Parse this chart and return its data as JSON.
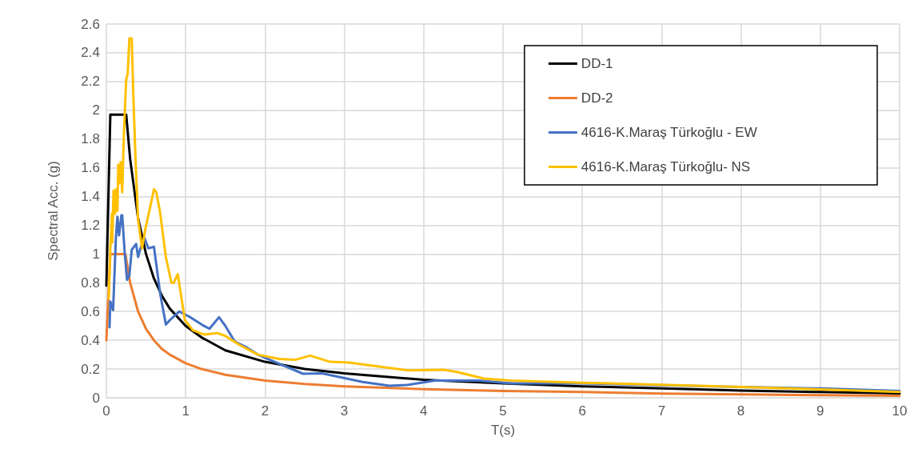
{
  "chart_data": {
    "type": "line",
    "xlabel": "T(s)",
    "ylabel": "Spectral Acc. (g)",
    "xlim": [
      0,
      10
    ],
    "xticks": [
      0,
      1,
      2,
      3,
      4,
      5,
      6,
      7,
      8,
      9,
      10
    ],
    "ylim": [
      0,
      2.6
    ],
    "yticks": [
      0,
      0.2,
      0.4,
      0.6,
      0.8,
      1,
      1.2,
      1.4,
      1.6,
      1.8,
      2,
      2.2,
      2.4,
      2.6
    ],
    "grid": true,
    "legend": "top right",
    "marker": "none",
    "line_style": "solid",
    "series": [
      {
        "name": "DD-1",
        "color": "#000000",
        "x": [
          0,
          0.05,
          0.25,
          0.3,
          0.4,
          0.5,
          0.6,
          0.7,
          0.8,
          1,
          1.2,
          1.5,
          2,
          2.5,
          3,
          4,
          5,
          6,
          7,
          8,
          9,
          10
        ],
        "values": [
          0.78,
          1.97,
          1.97,
          1.66,
          1.25,
          1.0,
          0.83,
          0.71,
          0.62,
          0.5,
          0.42,
          0.33,
          0.25,
          0.2,
          0.17,
          0.125,
          0.1,
          0.08,
          0.065,
          0.05,
          0.04,
          0.03
        ]
      },
      {
        "name": "DD-2",
        "color": "#ed7d31",
        "x": [
          0,
          0.05,
          0.24,
          0.3,
          0.4,
          0.5,
          0.6,
          0.7,
          0.8,
          1,
          1.2,
          1.5,
          2,
          2.5,
          3,
          4,
          5,
          6,
          7,
          8,
          9,
          10
        ],
        "values": [
          0.4,
          1.0,
          1.0,
          0.8,
          0.6,
          0.48,
          0.4,
          0.34,
          0.3,
          0.24,
          0.2,
          0.16,
          0.12,
          0.096,
          0.08,
          0.06,
          0.048,
          0.04,
          0.029,
          0.023,
          0.018,
          0.014
        ]
      },
      {
        "name": "4616-K.Maraş Türkoğlu - EW",
        "color": "#4472c4",
        "x": [
          0.04,
          0.05,
          0.085,
          0.12,
          0.14,
          0.16,
          0.19,
          0.2,
          0.23,
          0.26,
          0.29,
          0.32,
          0.375,
          0.4,
          0.43,
          0.48,
          0.53,
          0.6,
          0.68,
          0.75,
          0.8,
          0.92,
          1.06,
          1.23,
          1.3,
          1.42,
          1.5,
          1.62,
          1.77,
          1.91,
          2.08,
          2.48,
          2.72,
          3.23,
          3.57,
          3.81,
          4.14,
          4.69,
          5.1,
          6,
          7,
          8,
          9,
          10
        ],
        "values": [
          0.49,
          0.67,
          0.61,
          1.11,
          1.26,
          1.13,
          1.27,
          1.27,
          1.02,
          0.82,
          0.85,
          1.03,
          1.07,
          0.98,
          1.04,
          1.11,
          1.04,
          1.05,
          0.72,
          0.51,
          0.54,
          0.6,
          0.56,
          0.5,
          0.48,
          0.56,
          0.5,
          0.39,
          0.35,
          0.3,
          0.26,
          0.167,
          0.17,
          0.11,
          0.084,
          0.09,
          0.12,
          0.12,
          0.1,
          0.1,
          0.088,
          0.075,
          0.065,
          0.047
        ]
      },
      {
        "name": "4616-K.Maraş Türkoğlu- NS",
        "color": "#ffc000",
        "x": [
          0.03,
          0.05,
          0.07,
          0.075,
          0.09,
          0.11,
          0.12,
          0.14,
          0.15,
          0.16,
          0.18,
          0.2,
          0.22,
          0.25,
          0.27,
          0.29,
          0.32,
          0.34,
          0.37,
          0.4,
          0.45,
          0.49,
          0.55,
          0.6,
          0.63,
          0.68,
          0.75,
          0.82,
          0.85,
          0.9,
          0.94,
          0.99,
          1.09,
          1.23,
          1.4,
          1.5,
          1.67,
          1.91,
          2.18,
          2.38,
          2.57,
          2.82,
          3.06,
          3.4,
          3.81,
          4.25,
          4.42,
          4.76,
          5.1,
          6,
          7,
          8,
          9,
          10
        ],
        "values": [
          0.69,
          1.04,
          1.28,
          1.08,
          1.44,
          1.28,
          1.45,
          1.3,
          1.62,
          1.49,
          1.64,
          1.43,
          1.82,
          2.21,
          2.26,
          2.5,
          2.5,
          2.1,
          1.63,
          1.24,
          1.04,
          1.17,
          1.32,
          1.45,
          1.43,
          1.28,
          0.98,
          0.8,
          0.8,
          0.86,
          0.72,
          0.54,
          0.47,
          0.44,
          0.45,
          0.43,
          0.37,
          0.3,
          0.27,
          0.264,
          0.293,
          0.25,
          0.245,
          0.22,
          0.19,
          0.195,
          0.18,
          0.134,
          0.12,
          0.105,
          0.09,
          0.075,
          0.058,
          0.04
        ]
      }
    ]
  }
}
